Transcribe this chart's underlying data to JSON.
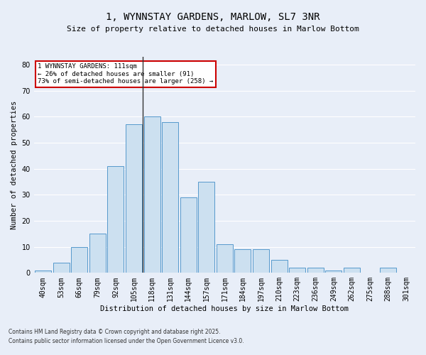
{
  "title1": "1, WYNNSTAY GARDENS, MARLOW, SL7 3NR",
  "title2": "Size of property relative to detached houses in Marlow Bottom",
  "xlabel": "Distribution of detached houses by size in Marlow Bottom",
  "ylabel": "Number of detached properties",
  "bar_labels": [
    "40sqm",
    "53sqm",
    "66sqm",
    "79sqm",
    "92sqm",
    "105sqm",
    "118sqm",
    "131sqm",
    "144sqm",
    "157sqm",
    "171sqm",
    "184sqm",
    "197sqm",
    "210sqm",
    "223sqm",
    "236sqm",
    "249sqm",
    "262sqm",
    "275sqm",
    "288sqm",
    "301sqm"
  ],
  "bar_values": [
    1,
    4,
    10,
    15,
    41,
    57,
    60,
    58,
    29,
    35,
    11,
    9,
    9,
    5,
    2,
    2,
    1,
    2,
    0,
    2,
    0
  ],
  "bar_color": "#cce0f0",
  "bar_edge_color": "#5599cc",
  "vline_color": "#333333",
  "annotation_box_color": "#cc0000",
  "bg_color": "#e8eef8",
  "grid_color": "#ffffff",
  "ylim": [
    0,
    83
  ],
  "yticks": [
    0,
    10,
    20,
    30,
    40,
    50,
    60,
    70,
    80
  ],
  "pct_smaller": 26,
  "n_smaller": 91,
  "pct_semi_larger": 73,
  "n_semi_larger": 258,
  "footer1": "Contains HM Land Registry data © Crown copyright and database right 2025.",
  "footer2": "Contains public sector information licensed under the Open Government Licence v3.0."
}
